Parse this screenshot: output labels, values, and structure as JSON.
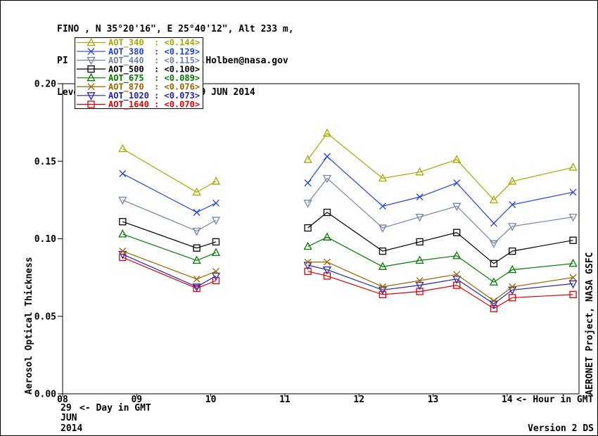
{
  "chart_data": {
    "type": "line",
    "header_lines": [
      "FINO , N 35°20'16\", E 25°40'12\", Alt 233 m,",
      "PI : Brent Holben, Brent.N.Holben@nasa.gov",
      "Level 1.5 AOT; Data from 29 JUN 2014"
    ],
    "ylabel": "Aerosol Optical Thickness",
    "right_credit": "AERONET Project, NASA GSFC",
    "legend_position": "top-left",
    "grid": false,
    "x_axis": {
      "suffix_label": "<- Hour in GMT",
      "range": [
        8,
        14.97
      ],
      "ticks": [
        {
          "hour": 8,
          "label": "08"
        },
        {
          "hour": 9,
          "label": "09"
        },
        {
          "hour": 10,
          "label": "10"
        },
        {
          "hour": 11,
          "label": "11"
        },
        {
          "hour": 12,
          "label": "12"
        },
        {
          "hour": 13,
          "label": "13"
        },
        {
          "hour": 14,
          "label": "14"
        }
      ]
    },
    "y_axis": {
      "range": [
        0,
        0.2
      ],
      "ticks": [
        {
          "value": 0.0,
          "label": "0.00"
        },
        {
          "value": 0.05,
          "label": "0.05"
        },
        {
          "value": 0.1,
          "label": "0.10"
        },
        {
          "value": 0.15,
          "label": "0.15"
        },
        {
          "value": 0.2,
          "label": "0.20"
        }
      ]
    },
    "footer": {
      "day": "29",
      "day_arrow": "<- Day in GMT",
      "month": "JUN",
      "year": "2014",
      "version": "Version 2 DS"
    },
    "hours": [
      8.81,
      9.81,
      10.07,
      11.31,
      11.57,
      12.32,
      12.82,
      13.32,
      13.82,
      14.07,
      14.89
    ],
    "segments": [
      [
        0,
        3
      ],
      [
        3,
        11
      ]
    ],
    "series": [
      {
        "name": "AOT_1640",
        "average_label": "<0.070>",
        "color": "#e00000",
        "marker": "square",
        "values": [
          0.088,
          0.068,
          0.073,
          0.079,
          0.076,
          0.064,
          0.066,
          0.07,
          0.055,
          0.062,
          0.064
        ]
      },
      {
        "name": "AOT_1020",
        "average_label": "<0.073>",
        "color": "#2323bd",
        "marker": "triangle-down",
        "values": [
          0.09,
          0.069,
          0.076,
          0.083,
          0.08,
          0.067,
          0.07,
          0.074,
          0.058,
          0.067,
          0.071
        ]
      },
      {
        "name": "AOT_870",
        "average_label": "<0.076>",
        "color": "#9c6300",
        "marker": "x-cross",
        "values": [
          0.092,
          0.074,
          0.079,
          0.085,
          0.085,
          0.069,
          0.073,
          0.077,
          0.06,
          0.069,
          0.075
        ]
      },
      {
        "name": "AOT_675",
        "average_label": "<0.089>",
        "color": "#007a00",
        "marker": "triangle-up",
        "values": [
          0.103,
          0.086,
          0.091,
          0.095,
          0.101,
          0.082,
          0.086,
          0.089,
          0.072,
          0.08,
          0.084
        ]
      },
      {
        "name": "AOT_500",
        "average_label": "<0.100>",
        "color": "#000000",
        "marker": "square",
        "values": [
          0.111,
          0.094,
          0.098,
          0.107,
          0.117,
          0.092,
          0.098,
          0.104,
          0.084,
          0.092,
          0.099
        ]
      },
      {
        "name": "AOT_440",
        "average_label": "<0.115>",
        "color": "#7085a8",
        "marker": "triangle-down",
        "values": [
          0.125,
          0.105,
          0.112,
          0.123,
          0.139,
          0.107,
          0.114,
          0.121,
          0.097,
          0.108,
          0.114
        ]
      },
      {
        "name": "AOT_380",
        "average_label": "<0.129>",
        "color": "#2240e8",
        "marker": "x-cross",
        "values": [
          0.142,
          0.117,
          0.123,
          0.136,
          0.153,
          0.121,
          0.127,
          0.136,
          0.11,
          0.122,
          0.13
        ]
      },
      {
        "name": "AOT_340",
        "average_label": "<0.144>",
        "color": "#a8a800",
        "marker": "triangle-up",
        "values": [
          0.158,
          0.13,
          0.137,
          0.151,
          0.168,
          0.139,
          0.143,
          0.151,
          0.125,
          0.137,
          0.146
        ]
      }
    ]
  }
}
